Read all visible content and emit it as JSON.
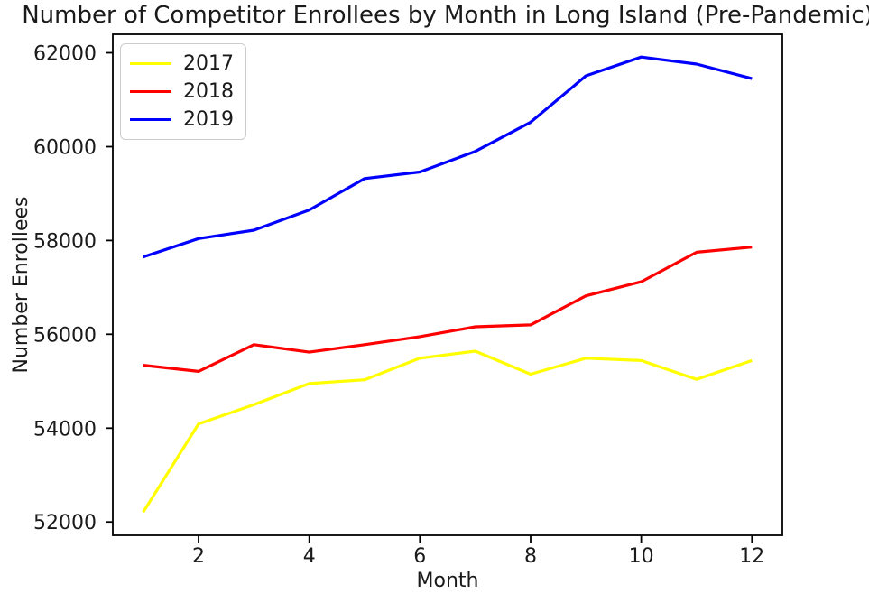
{
  "chart_data": {
    "type": "line",
    "title": "Number of Competitor Enrollees by Month in Long Island (Pre-Pandemic)",
    "xlabel": "Month",
    "ylabel": "Number Enrollees",
    "x": [
      1,
      2,
      3,
      4,
      5,
      6,
      7,
      8,
      9,
      10,
      11,
      12
    ],
    "series": [
      {
        "name": "2017",
        "color": "#ffff00",
        "values": [
          52210,
          54090,
          54500,
          54950,
          55030,
          55490,
          55640,
          55150,
          55490,
          55440,
          55040,
          55440
        ]
      },
      {
        "name": "2018",
        "color": "#ff0000",
        "values": [
          55340,
          55210,
          55780,
          55620,
          55780,
          55950,
          56160,
          56200,
          56820,
          57120,
          57750,
          57860
        ]
      },
      {
        "name": "2019",
        "color": "#0000ff",
        "values": [
          57650,
          58040,
          58220,
          58650,
          59320,
          59460,
          59900,
          60520,
          61510,
          61910,
          61760,
          61450
        ]
      }
    ],
    "xticks": [
      2,
      4,
      6,
      8,
      10,
      12
    ],
    "yticks": [
      52000,
      54000,
      56000,
      58000,
      60000,
      62000
    ],
    "xlim": [
      0.45,
      12.55
    ],
    "ylim": [
      51715,
      62395
    ],
    "grid": false,
    "legend_position": "upper left",
    "axis_color": "#000000",
    "text_color": "#1a1a1a"
  }
}
